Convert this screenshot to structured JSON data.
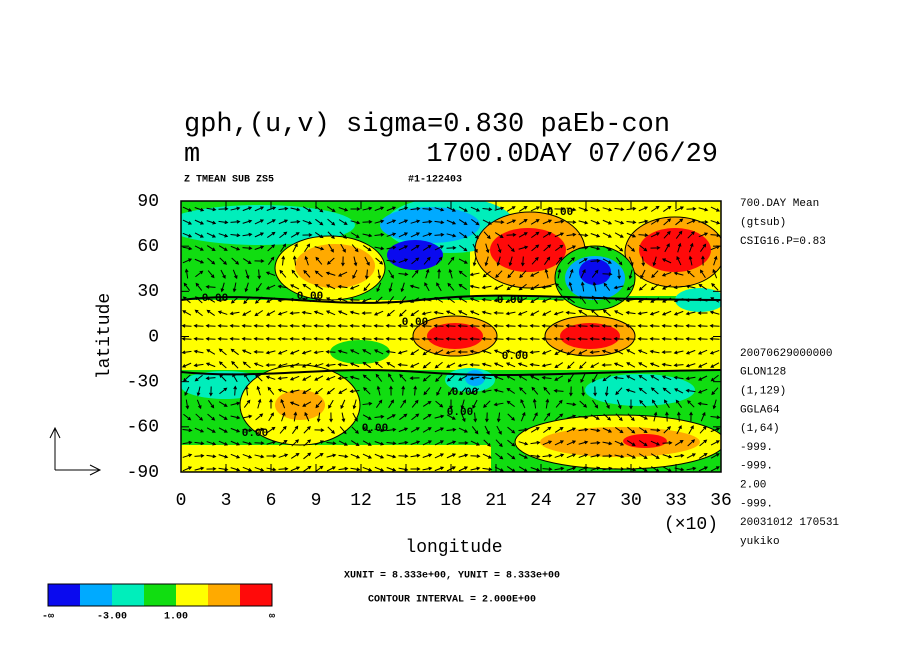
{
  "chart_data": {
    "type": "contour",
    "title": "gph,(u,v) sigma=0.830 paEb-con",
    "unit": "m",
    "date_label": "1700.0DAY 07/06/29",
    "subtitle_left": "Z TMEAN SUB ZS5",
    "subtitle_right": "#1-122403",
    "x_label": "longitude",
    "y_label": "latitude",
    "x_multiplier": "(×10)",
    "xlim": [
      0,
      36
    ],
    "ylim": [
      -90,
      90
    ],
    "xticks": [
      0,
      3,
      6,
      9,
      12,
      15,
      18,
      21,
      24,
      27,
      30,
      33,
      36
    ],
    "yticks": [
      -90,
      -60,
      -30,
      0,
      30,
      60,
      90
    ],
    "info_top": [
      "700.DAY Mean",
      "(gtsub)",
      "CSIG16.P=0.83"
    ],
    "info_bottom": [
      "20070629000000",
      "GLON128",
      "(1,129)",
      "GGLA64",
      "(1,64)",
      "-999.",
      "-999.",
      "2.00",
      "-999.",
      "20031012 170531",
      "yukiko"
    ],
    "unit_note": "XUNIT = 8.333e+00, YUNIT = 8.333e+00",
    "contour_interval": "CONTOUR INTERVAL = 2.000E+00",
    "contour_labels": [
      "0.00",
      "0.00",
      "0.00",
      "0.00",
      "0.00",
      "0.00",
      "0.00",
      "0.00",
      "0.00",
      "0.00"
    ],
    "colorbar": {
      "colors": [
        "#0a0aef",
        "#00aaff",
        "#00eebb",
        "#11dd11",
        "#ffff00",
        "#ffaa00",
        "#ff0a0a"
      ],
      "labels": [
        "-∞",
        "-3.00",
        "1.00",
        "∞"
      ]
    }
  }
}
